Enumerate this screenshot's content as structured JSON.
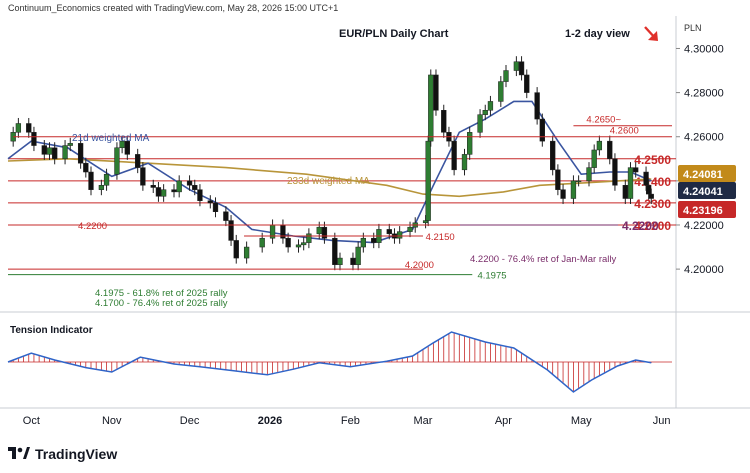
{
  "header": {
    "caption": "Continuum_Economics created with TradingView.com, May 28, 2026 15:00 UTC+1"
  },
  "footer": {
    "brand": "TradingView"
  },
  "colors": {
    "bull": "#2e7d32",
    "bear": "#111111",
    "resistance": "#c62828",
    "support_label": "#c62828",
    "ma21": "#3a55a0",
    "ma233": "#b8953a",
    "tension_pos": "#c62828",
    "tension_neg": "#c62828",
    "tension_line": "#2f64c8",
    "last_price_bg": "#c62828",
    "ma21_tag_bg": "#1f2a44",
    "ma233_tag_bg": "#c28a1a",
    "annotation_grey": "#555555",
    "fib_text": "#7a2d6a",
    "fib_line": "#2e7d32"
  },
  "chart_data": {
    "type": "candlestick",
    "title": "EUR/PLN Daily Chart",
    "subtitle": "1-2 day view",
    "currency": "PLN",
    "ylim": [
      4.186,
      4.312
    ],
    "y_ticks": [
      "4.30000",
      "4.28000",
      "4.26000",
      "4.24000",
      "4.22000",
      "4.20000"
    ],
    "x_tick_labels": [
      "Oct",
      "Nov",
      "Dec",
      "2026",
      "Feb",
      "Mar",
      "Apr",
      "May",
      "Jun"
    ],
    "x_tick_dates": [
      "2025-10-01",
      "2025-11-01",
      "2025-12-01",
      "2026-01-01",
      "2026-02-01",
      "2026-03-01",
      "2026-04-01",
      "2026-05-01",
      "2026-06-01"
    ],
    "x_start": "2025-09-22",
    "x_end": "2026-06-05",
    "last_date": "2026-05-28",
    "current_price": "4.23196",
    "ma21_last": "4.24041",
    "ma233_last": "4.24081",
    "ma_labels": {
      "ma21": "21d weighted MA",
      "ma233": "233d weighted MA"
    },
    "right_levels": [
      {
        "value": 4.25,
        "label": "4.2500"
      },
      {
        "value": 4.24,
        "label": "4.2400"
      },
      {
        "value": 4.23,
        "label": "4.2300"
      },
      {
        "value": 4.22,
        "label": "4.2200"
      }
    ],
    "annotations": [
      {
        "text": "4.2650~",
        "value": 4.265
      },
      {
        "text": "4.2600",
        "value": 4.26
      },
      {
        "text": "4.2200",
        "value": 4.22
      },
      {
        "text": "4.2150",
        "value": 4.215
      },
      {
        "text": "4.2000",
        "value": 4.2
      },
      {
        "text": "4.1975",
        "value": 4.1975
      }
    ],
    "notes": [
      "4.2200 - 76.4% ret of Jan-Mar rally",
      "4.1975 - 61.8% ret of 2025 rally",
      "4.1700 - 76.4% ret of 2025 rally"
    ],
    "closes": [
      [
        "2025-09-22",
        4.258
      ],
      [
        "2025-09-24",
        4.262
      ],
      [
        "2025-09-26",
        4.266
      ],
      [
        "2025-09-30",
        4.262
      ],
      [
        "2025-10-02",
        4.256
      ],
      [
        "2025-10-06",
        4.252
      ],
      [
        "2025-10-08",
        4.255
      ],
      [
        "2025-10-10",
        4.25
      ],
      [
        "2025-10-14",
        4.256
      ],
      [
        "2025-10-16",
        4.257
      ],
      [
        "2025-10-20",
        4.248
      ],
      [
        "2025-10-22",
        4.244
      ],
      [
        "2025-10-24",
        4.236
      ],
      [
        "2025-10-28",
        4.238
      ],
      [
        "2025-10-30",
        4.243
      ],
      [
        "2025-11-03",
        4.255
      ],
      [
        "2025-11-05",
        4.258
      ],
      [
        "2025-11-07",
        4.252
      ],
      [
        "2025-11-11",
        4.246
      ],
      [
        "2025-11-13",
        4.238
      ],
      [
        "2025-11-17",
        4.237
      ],
      [
        "2025-11-19",
        4.233
      ],
      [
        "2025-11-21",
        4.236
      ],
      [
        "2025-11-25",
        4.235
      ],
      [
        "2025-11-27",
        4.24
      ],
      [
        "2025-12-01",
        4.238
      ],
      [
        "2025-12-03",
        4.236
      ],
      [
        "2025-12-05",
        4.231
      ],
      [
        "2025-12-09",
        4.23
      ],
      [
        "2025-12-11",
        4.226
      ],
      [
        "2025-12-15",
        4.222
      ],
      [
        "2025-12-17",
        4.213
      ],
      [
        "2025-12-19",
        4.205
      ],
      [
        "2025-12-23",
        4.21
      ],
      [
        "2025-12-29",
        4.214
      ],
      [
        "2026-01-02",
        4.22
      ],
      [
        "2026-01-06",
        4.214
      ],
      [
        "2026-01-08",
        4.21
      ],
      [
        "2026-01-12",
        4.211
      ],
      [
        "2026-01-14",
        4.212
      ],
      [
        "2026-01-16",
        4.216
      ],
      [
        "2026-01-20",
        4.219
      ],
      [
        "2026-01-22",
        4.214
      ],
      [
        "2026-01-26",
        4.202
      ],
      [
        "2026-01-28",
        4.205
      ],
      [
        "2026-02-02",
        4.202
      ],
      [
        "2026-02-04",
        4.21
      ],
      [
        "2026-02-06",
        4.214
      ],
      [
        "2026-02-10",
        4.212
      ],
      [
        "2026-02-12",
        4.218
      ],
      [
        "2026-02-16",
        4.216
      ],
      [
        "2026-02-18",
        4.214
      ],
      [
        "2026-02-20",
        4.217
      ],
      [
        "2026-02-24",
        4.219
      ],
      [
        "2026-02-26",
        4.221
      ],
      [
        "2026-03-02",
        4.222
      ],
      [
        "2026-03-03",
        4.258
      ],
      [
        "2026-03-04",
        4.288
      ],
      [
        "2026-03-06",
        4.272
      ],
      [
        "2026-03-09",
        4.262
      ],
      [
        "2026-03-11",
        4.258
      ],
      [
        "2026-03-13",
        4.245
      ],
      [
        "2026-03-17",
        4.252
      ],
      [
        "2026-03-19",
        4.262
      ],
      [
        "2026-03-23",
        4.27
      ],
      [
        "2026-03-25",
        4.272
      ],
      [
        "2026-03-27",
        4.276
      ],
      [
        "2026-03-31",
        4.285
      ],
      [
        "2026-04-02",
        4.29
      ],
      [
        "2026-04-06",
        4.294
      ],
      [
        "2026-04-08",
        4.288
      ],
      [
        "2026-04-10",
        4.28
      ],
      [
        "2026-04-14",
        4.268
      ],
      [
        "2026-04-16",
        4.258
      ],
      [
        "2026-04-20",
        4.245
      ],
      [
        "2026-04-22",
        4.236
      ],
      [
        "2026-04-24",
        4.232
      ],
      [
        "2026-04-28",
        4.24
      ],
      [
        "2026-04-30",
        4.24
      ],
      [
        "2026-05-04",
        4.246
      ],
      [
        "2026-05-06",
        4.254
      ],
      [
        "2026-05-08",
        4.258
      ],
      [
        "2026-05-12",
        4.25
      ],
      [
        "2026-05-14",
        4.238
      ],
      [
        "2026-05-18",
        4.232
      ],
      [
        "2026-05-20",
        4.246
      ],
      [
        "2026-05-22",
        4.244
      ],
      [
        "2026-05-26",
        4.238
      ],
      [
        "2026-05-27",
        4.234
      ],
      [
        "2026-05-28",
        4.232
      ]
    ],
    "ma21_points": [
      [
        "2025-09-22",
        4.25
      ],
      [
        "2025-10-01",
        4.258
      ],
      [
        "2025-10-15",
        4.255
      ],
      [
        "2025-11-01",
        4.242
      ],
      [
        "2025-11-15",
        4.248
      ],
      [
        "2025-12-01",
        4.236
      ],
      [
        "2025-12-15",
        4.228
      ],
      [
        "2025-12-25",
        4.218
      ],
      [
        "2026-01-10",
        4.215
      ],
      [
        "2026-01-25",
        4.213
      ],
      [
        "2026-02-10",
        4.212
      ],
      [
        "2026-02-25",
        4.218
      ],
      [
        "2026-03-05",
        4.238
      ],
      [
        "2026-03-15",
        4.262
      ],
      [
        "2026-03-25",
        4.268
      ],
      [
        "2026-04-05",
        4.276
      ],
      [
        "2026-04-12",
        4.276
      ],
      [
        "2026-04-22",
        4.258
      ],
      [
        "2026-05-01",
        4.243
      ],
      [
        "2026-05-12",
        4.244
      ],
      [
        "2026-05-20",
        4.244
      ],
      [
        "2026-05-28",
        4.24
      ]
    ],
    "ma233_points": [
      [
        "2025-09-22",
        4.249
      ],
      [
        "2025-10-15",
        4.25
      ],
      [
        "2025-11-15",
        4.248
      ],
      [
        "2025-12-15",
        4.246
      ],
      [
        "2026-01-15",
        4.243
      ],
      [
        "2026-02-15",
        4.238
      ],
      [
        "2026-03-01",
        4.234
      ],
      [
        "2026-03-15",
        4.233
      ],
      [
        "2026-04-01",
        4.235
      ],
      [
        "2026-04-15",
        4.238
      ],
      [
        "2026-05-01",
        4.239
      ],
      [
        "2026-05-15",
        4.24
      ],
      [
        "2026-05-28",
        4.2408
      ]
    ],
    "tension_indicator": {
      "title": "Tension Indicator",
      "ylim": [
        -1,
        1
      ],
      "points": [
        [
          "2025-09-22",
          0.0
        ],
        [
          "2025-10-01",
          0.22
        ],
        [
          "2025-10-10",
          0.05
        ],
        [
          "2025-10-22",
          -0.14
        ],
        [
          "2025-11-01",
          -0.25
        ],
        [
          "2025-11-12",
          0.12
        ],
        [
          "2025-11-25",
          -0.05
        ],
        [
          "2025-12-05",
          -0.12
        ],
        [
          "2025-12-18",
          -0.22
        ],
        [
          "2025-12-31",
          -0.32
        ],
        [
          "2026-01-10",
          -0.18
        ],
        [
          "2026-01-20",
          -0.02
        ],
        [
          "2026-02-01",
          -0.12
        ],
        [
          "2026-02-15",
          0.02
        ],
        [
          "2026-02-25",
          0.15
        ],
        [
          "2026-03-05",
          0.48
        ],
        [
          "2026-03-12",
          0.75
        ],
        [
          "2026-03-25",
          0.5
        ],
        [
          "2026-04-05",
          0.35
        ],
        [
          "2026-04-18",
          -0.2
        ],
        [
          "2026-04-28",
          -0.75
        ],
        [
          "2026-05-05",
          -0.45
        ],
        [
          "2026-05-15",
          -0.1
        ],
        [
          "2026-05-22",
          0.05
        ],
        [
          "2026-05-28",
          -0.02
        ]
      ]
    }
  }
}
